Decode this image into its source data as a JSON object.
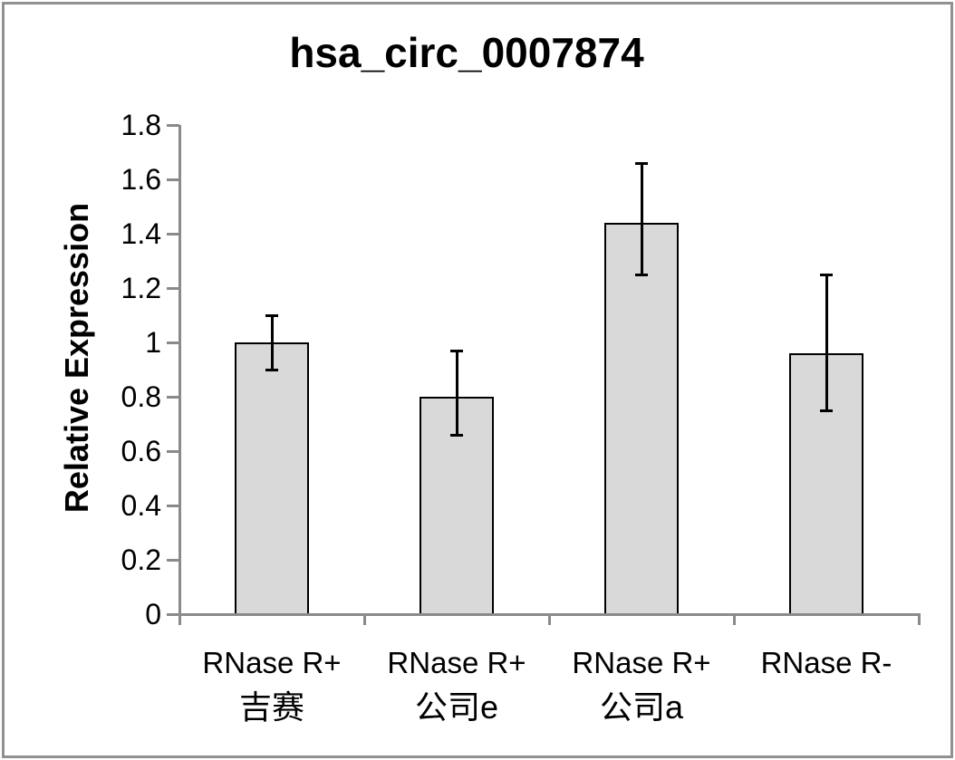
{
  "chart_data": {
    "type": "bar",
    "title": "hsa_circ_0007874",
    "xlabel": "",
    "ylabel": "Relative Expression",
    "ylim": [
      0,
      1.8
    ],
    "y_tick_values": [
      0,
      0.2,
      0.4,
      0.6,
      0.8,
      1,
      1.2,
      1.4,
      1.6,
      1.8
    ],
    "y_tick_labels": [
      "0",
      "0.2",
      "0.4",
      "0.6",
      "0.8",
      "1",
      "1.2",
      "1.4",
      "1.6",
      "1.8"
    ],
    "grid": false,
    "legend": false,
    "error_bars": true,
    "bars": [
      {
        "label_line1": "RNase R+",
        "label_line2": "吉赛",
        "value": 1.0,
        "error_low": 0.9,
        "error_high": 1.1
      },
      {
        "label_line1": "RNase R+",
        "label_line2": "公司e",
        "value": 0.8,
        "error_low": 0.66,
        "error_high": 0.97
      },
      {
        "label_line1": "RNase R+",
        "label_line2": "公司a",
        "value": 1.44,
        "error_low": 1.25,
        "error_high": 1.66
      },
      {
        "label_line1": "RNase R-",
        "label_line2": "",
        "value": 0.96,
        "error_low": 0.75,
        "error_high": 1.25
      }
    ],
    "colors": {
      "bar_fill": "#d9d9d9",
      "bar_border": "#000000",
      "error_bar": "#000000",
      "axis": "#8a8a8a",
      "frame": "#919191",
      "text": "#000000",
      "background": "#ffffff"
    }
  }
}
